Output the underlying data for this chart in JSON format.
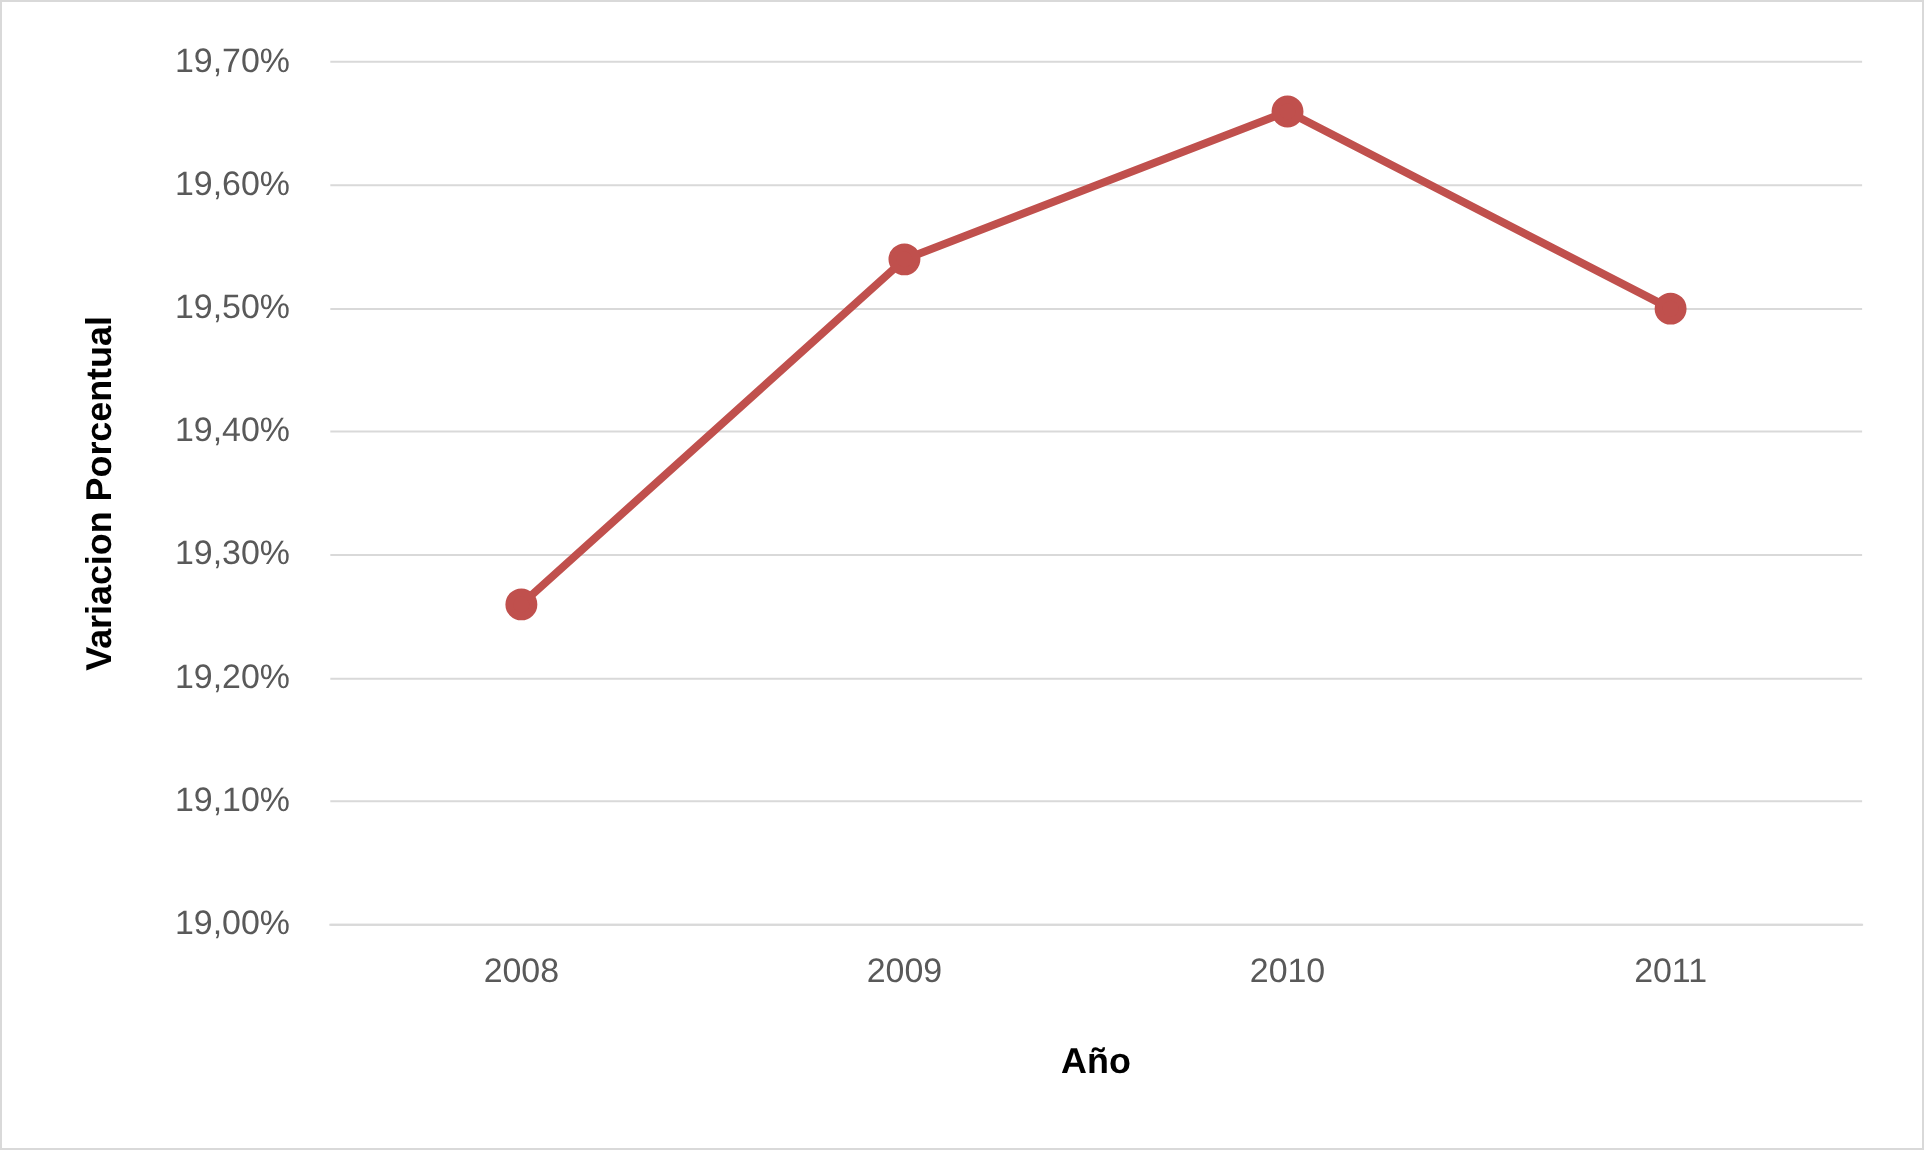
{
  "chart_data": {
    "type": "line",
    "xlabel": "Año",
    "ylabel": "Variacion Porcentual",
    "categories": [
      "2008",
      "2009",
      "2010",
      "2011"
    ],
    "series": [
      {
        "color": "#c0504d",
        "values": [
          19.26,
          19.54,
          19.66,
          19.5
        ]
      }
    ],
    "ylim": [
      19.0,
      19.7
    ],
    "yticks": [
      {
        "value": 19.0,
        "label": "19,00%"
      },
      {
        "value": 19.1,
        "label": "19,10%"
      },
      {
        "value": 19.2,
        "label": "19,20%"
      },
      {
        "value": 19.3,
        "label": "19,30%"
      },
      {
        "value": 19.4,
        "label": "19,40%"
      },
      {
        "value": 19.5,
        "label": "19,50%"
      },
      {
        "value": 19.6,
        "label": "19,60%"
      },
      {
        "value": 19.7,
        "label": "19,70%"
      }
    ],
    "grid": "y",
    "legend": false,
    "marker": "circle",
    "line_style": "solid"
  }
}
